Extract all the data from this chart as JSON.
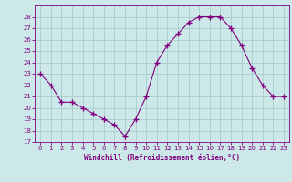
{
  "x": [
    0,
    1,
    2,
    3,
    4,
    5,
    6,
    7,
    8,
    9,
    10,
    11,
    12,
    13,
    14,
    15,
    16,
    17,
    18,
    19,
    20,
    21,
    22,
    23
  ],
  "y": [
    23,
    22,
    20.5,
    20.5,
    20,
    19.5,
    19,
    18.5,
    17.5,
    19,
    21,
    24,
    25.5,
    26.5,
    27.5,
    28,
    28,
    28,
    27,
    25.5,
    23.5,
    22,
    21,
    21
  ],
  "line_color": "#800080",
  "marker_color": "#800080",
  "bg_color": "#cce8e8",
  "grid_color": "#aacccc",
  "xlabel": "Windchill (Refroidissement éolien,°C)",
  "xlabel_color": "#800080",
  "tick_color": "#800080",
  "ylim_min": 17,
  "ylim_max": 29,
  "xlim_min": -0.5,
  "xlim_max": 23.5,
  "yticks": [
    17,
    18,
    19,
    20,
    21,
    22,
    23,
    24,
    25,
    26,
    27,
    28
  ],
  "xticks": [
    0,
    1,
    2,
    3,
    4,
    5,
    6,
    7,
    8,
    9,
    10,
    11,
    12,
    13,
    14,
    15,
    16,
    17,
    18,
    19,
    20,
    21,
    22,
    23
  ]
}
